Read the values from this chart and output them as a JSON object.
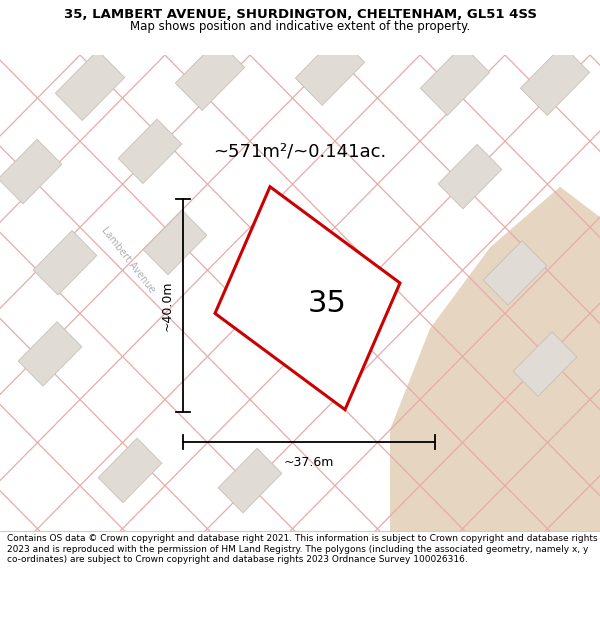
{
  "title": "35, LAMBERT AVENUE, SHURDINGTON, CHELTENHAM, GL51 4SS",
  "subtitle": "Map shows position and indicative extent of the property.",
  "footer": "Contains OS data © Crown copyright and database right 2021. This information is subject to Crown copyright and database rights 2023 and is reproduced with the permission of HM Land Registry. The polygons (including the associated geometry, namely x, y co-ordinates) are subject to Crown copyright and database rights 2023 Ordnance Survey 100026316.",
  "area_label": "~571m²/~0.141ac.",
  "number_label": "35",
  "dim_width_label": "~37.6m",
  "dim_height_label": "~40.0m",
  "road_label": "Lambert Avenue",
  "road_label_color": "#b0b0b0",
  "map_bg_color": "#f2eeea",
  "plot_fill": "#ffffff",
  "plot_outline_color": "#cc0000",
  "street_line_color": "#e8aaaa",
  "building_fill": "#e0dbd5",
  "building_line": "#c8c0b8",
  "tan_fill": "#e6d5c0",
  "title_fontsize": 9.5,
  "subtitle_fontsize": 8.5,
  "footer_fontsize": 6.5
}
